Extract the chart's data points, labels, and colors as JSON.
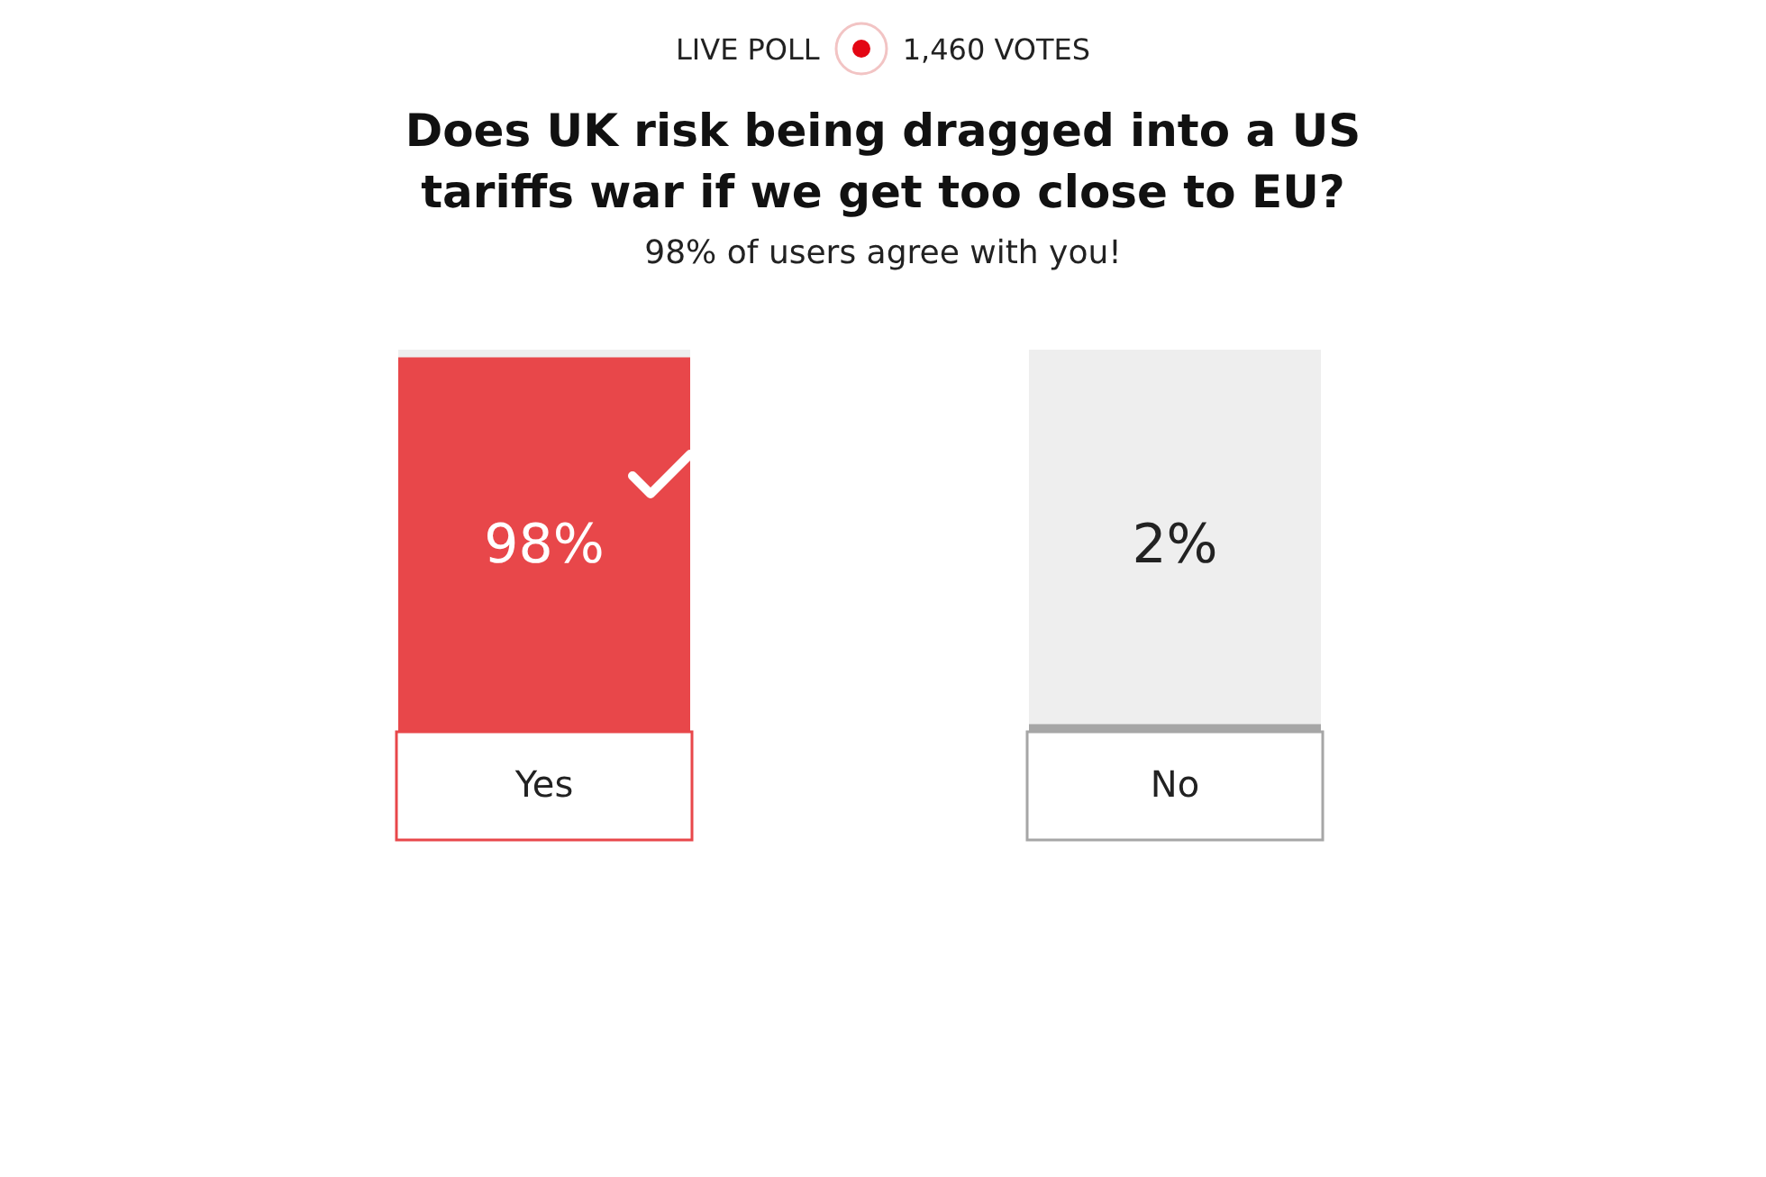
{
  "chart_data": {
    "type": "bar",
    "title": "Does UK risk being dragged into a US tariffs war if we get too close to EU?",
    "subtitle": "98% of users agree with you!",
    "annotations": [
      "LIVE POLL",
      "1,460 VOTES"
    ],
    "categories": [
      "Yes",
      "No"
    ],
    "values": [
      98,
      2
    ],
    "colors": [
      "#e8474a",
      "#a6a6a6"
    ],
    "value_labels": [
      "98%",
      "2%"
    ],
    "ylim": [
      0,
      100
    ],
    "tick_labels": "x",
    "grid": false,
    "legend": false
  }
}
